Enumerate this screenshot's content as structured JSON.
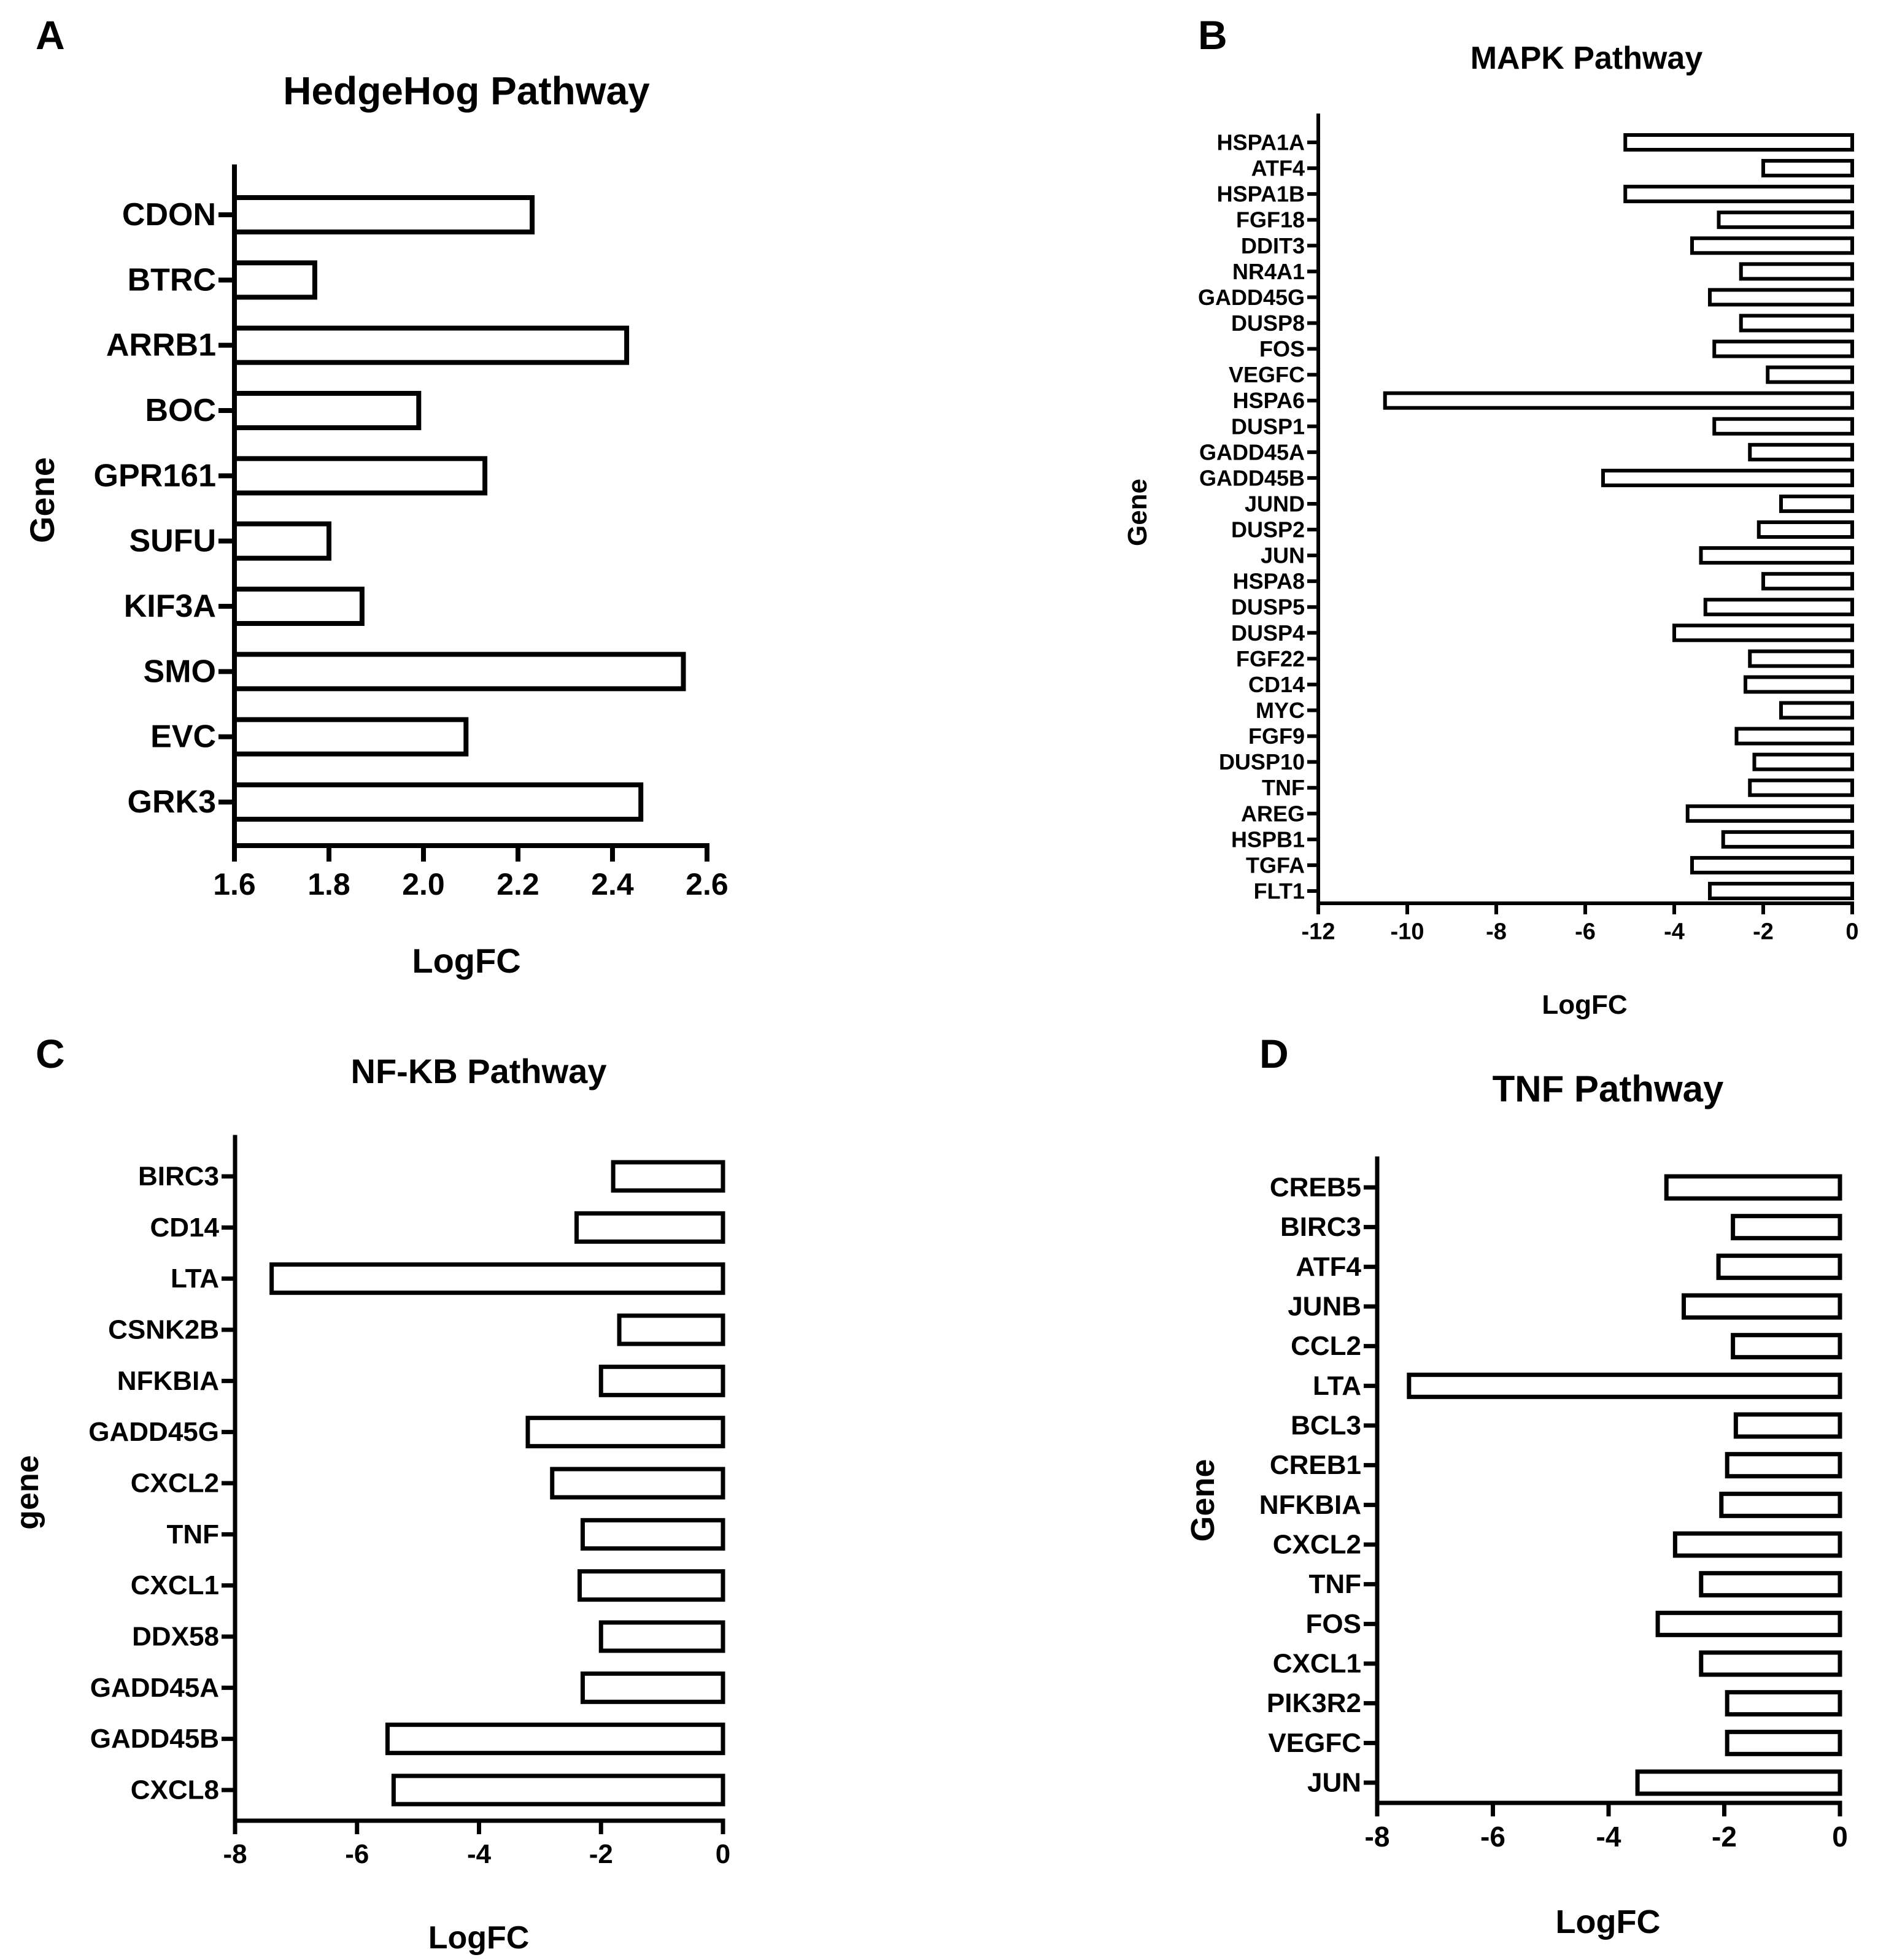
{
  "figure": {
    "background": "#ffffff",
    "ink": "#000000",
    "bar_fill": "#ffffff"
  },
  "chart_data": [
    {
      "panel_letter": "A",
      "type": "bar",
      "orientation": "horizontal",
      "title": "HedgeHog  Pathway",
      "xlabel": "LogFC",
      "ylabel": "Gene",
      "xlim": [
        1.6,
        2.6
      ],
      "xticks": [
        "1.6",
        "1.8",
        "2.0",
        "2.2",
        "2.4",
        "2.6"
      ],
      "categories": [
        "CDON",
        "BTRC",
        "ARRB1",
        "BOC",
        "GPR161",
        "SUFU",
        "KIF3A",
        "SMO",
        "EVC",
        "GRK3"
      ],
      "values": [
        2.23,
        1.77,
        2.43,
        1.99,
        2.13,
        1.8,
        1.87,
        2.55,
        2.09,
        2.46
      ]
    },
    {
      "panel_letter": "B",
      "type": "bar",
      "orientation": "horizontal",
      "title": "MAPK Pathway",
      "xlabel": "LogFC",
      "ylabel": "Gene",
      "xlim": [
        -12,
        0
      ],
      "xticks": [
        "-12",
        "-10",
        "-8",
        "-6",
        "-4",
        "-2",
        "0"
      ],
      "categories": [
        "HSPA1A",
        "ATF4",
        "HSPA1B",
        "FGF18",
        "DDIT3",
        "NR4A1",
        "GADD45G",
        "DUSP8",
        "FOS",
        "VEGFC",
        "HSPA6",
        "DUSP1",
        "GADD45A",
        "GADD45B",
        "JUND",
        "DUSP2",
        "JUN",
        "HSPA8",
        "DUSP5",
        "DUSP4",
        "FGF22",
        "CD14",
        "MYC",
        "FGF9",
        "DUSP10",
        "TNF",
        "AREG",
        "HSPB1",
        "TGFA",
        "FLT1"
      ],
      "values": [
        -5.1,
        -2.0,
        -5.1,
        -3.0,
        -3.6,
        -2.5,
        -3.2,
        -2.5,
        -3.1,
        -1.9,
        -10.5,
        -3.1,
        -2.3,
        -5.6,
        -1.6,
        -2.1,
        -3.4,
        -2.0,
        -3.3,
        -4.0,
        -2.3,
        -2.4,
        -1.6,
        -2.6,
        -2.2,
        -2.3,
        -3.7,
        -2.9,
        -3.6,
        -3.2
      ]
    },
    {
      "panel_letter": "C",
      "type": "bar",
      "orientation": "horizontal",
      "title": "NF-KB Pathway",
      "xlabel": "LogFC",
      "ylabel": "gene",
      "xlim": [
        -8,
        0
      ],
      "xticks": [
        "-8",
        "-6",
        "-4",
        "-2",
        "0"
      ],
      "categories": [
        "BIRC3",
        "CD14",
        "LTA",
        "CSNK2B",
        "NFKBIA",
        "GADD45G",
        "CXCL2",
        "TNF",
        "CXCL1",
        "DDX58",
        "GADD45A",
        "GADD45B",
        "CXCL8"
      ],
      "values": [
        -1.8,
        -2.4,
        -7.4,
        -1.7,
        -2.0,
        -3.2,
        -2.8,
        -2.3,
        -2.35,
        -2.0,
        -2.3,
        -5.5,
        -5.4
      ]
    },
    {
      "panel_letter": "D",
      "type": "bar",
      "orientation": "horizontal",
      "title": "TNF Pathway",
      "xlabel": "LogFC",
      "ylabel": "Gene",
      "xlim": [
        -8,
        0
      ],
      "xticks": [
        "-8",
        "-6",
        "-4",
        "-2",
        "0"
      ],
      "categories": [
        "CREB5",
        "BIRC3",
        "ATF4",
        "JUNB",
        "CCL2",
        "LTA",
        "BCL3",
        "CREB1",
        "NFKBIA",
        "CXCL2",
        "TNF",
        "FOS",
        "CXCL1",
        "PIK3R2",
        "VEGFC",
        "JUN"
      ],
      "values": [
        -3.0,
        -1.85,
        -2.1,
        -2.7,
        -1.85,
        -7.45,
        -1.8,
        -1.95,
        -2.05,
        -2.85,
        -2.4,
        -3.15,
        -2.4,
        -1.95,
        -1.95,
        -3.5
      ]
    }
  ]
}
